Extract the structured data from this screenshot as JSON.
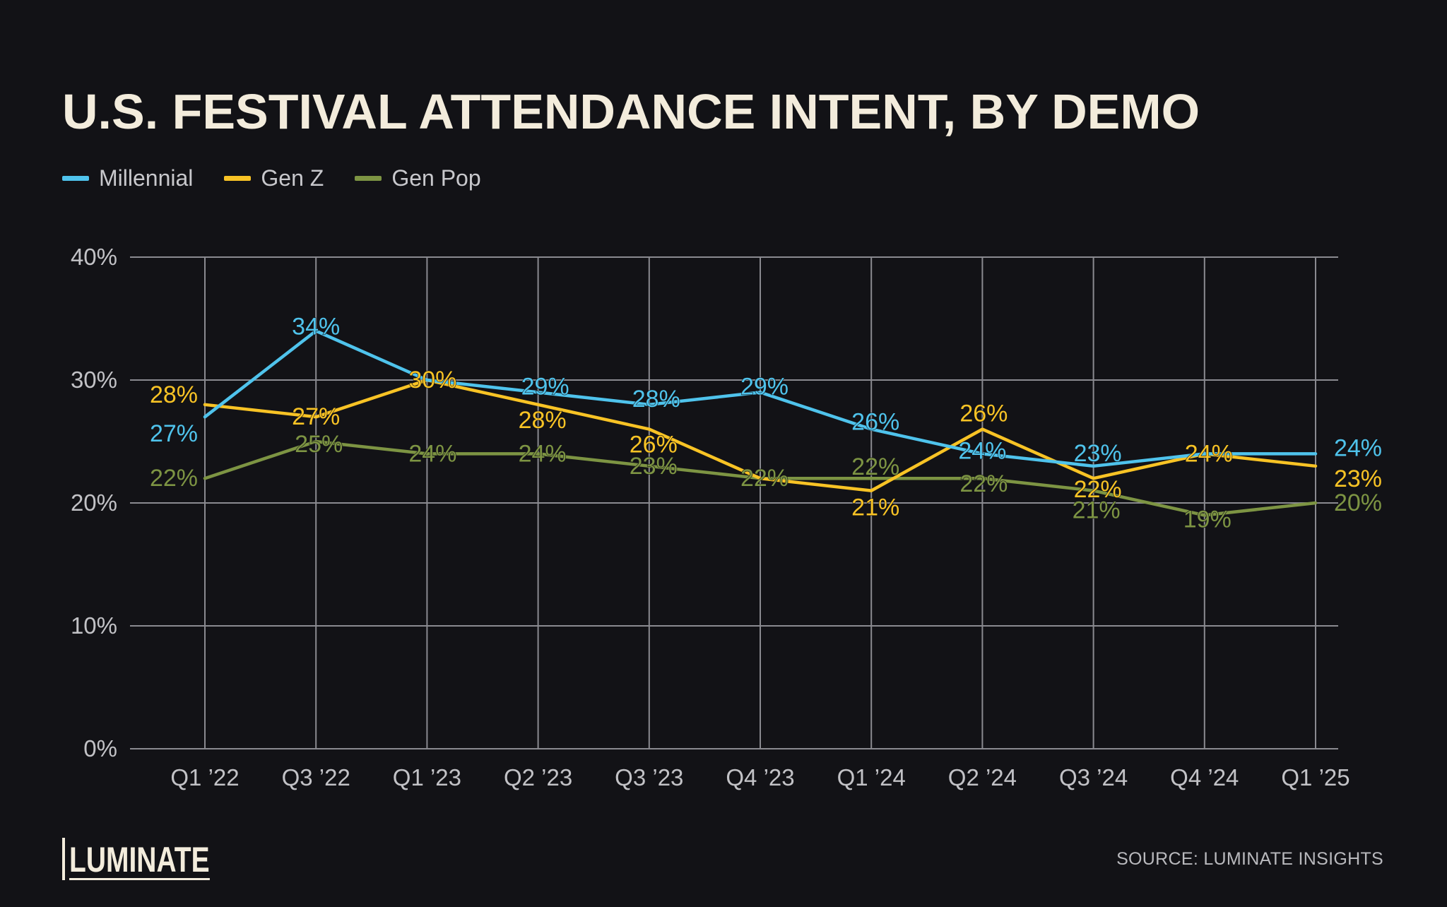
{
  "title": "U.S. FESTIVAL ATTENDANCE INTENT, BY DEMO",
  "legend": [
    {
      "label": "Millennial",
      "color": "#4fc3ec"
    },
    {
      "label": "Gen Z",
      "color": "#f8c325"
    },
    {
      "label": "Gen Pop",
      "color": "#7d9443"
    }
  ],
  "source": "SOURCE: LUMINATE INSIGHTS",
  "logo": "LUMINATE",
  "chart_data": {
    "type": "line",
    "title": "U.S. FESTIVAL ATTENDANCE INTENT, BY DEMO",
    "xlabel": "",
    "ylabel": "",
    "ylim": [
      0,
      40
    ],
    "yticks": [
      "0%",
      "10%",
      "20%",
      "30%",
      "40%"
    ],
    "ytick_values": [
      0,
      10,
      20,
      30,
      40
    ],
    "categories": [
      "Q1 ’22",
      "Q3 ’22",
      "Q1 ’23",
      "Q2 ’23",
      "Q3 ’23",
      "Q4 ’23",
      "Q1 ’24",
      "Q2 ’24",
      "Q3 ’24",
      "Q4 ’24",
      "Q1 ’25"
    ],
    "grid": true,
    "series": [
      {
        "name": "Millennial",
        "color": "#4fc3ec",
        "values": [
          27,
          34,
          30,
          29,
          28,
          29,
          26,
          24,
          23,
          24,
          24
        ],
        "labels": [
          "27%",
          "34%",
          "",
          "29%",
          "28%",
          "29%",
          "26%",
          "24%",
          "23%",
          "",
          "24%"
        ]
      },
      {
        "name": "Gen Z",
        "color": "#f8c325",
        "values": [
          28,
          27,
          30,
          28,
          26,
          22,
          21,
          26,
          22,
          24,
          23
        ],
        "labels": [
          "28%",
          "27%",
          "30%",
          "28%",
          "26%",
          "",
          "21%",
          "26%",
          "22%",
          "24%",
          "23%"
        ]
      },
      {
        "name": "Gen Pop",
        "color": "#7d9443",
        "values": [
          22,
          25,
          24,
          24,
          23,
          22,
          22,
          22,
          21,
          19,
          20
        ],
        "labels": [
          "22%",
          "25%",
          "24%",
          "24%",
          "23%",
          "22%",
          "22%",
          "22%",
          "21%",
          "19%",
          "20%"
        ]
      }
    ]
  }
}
